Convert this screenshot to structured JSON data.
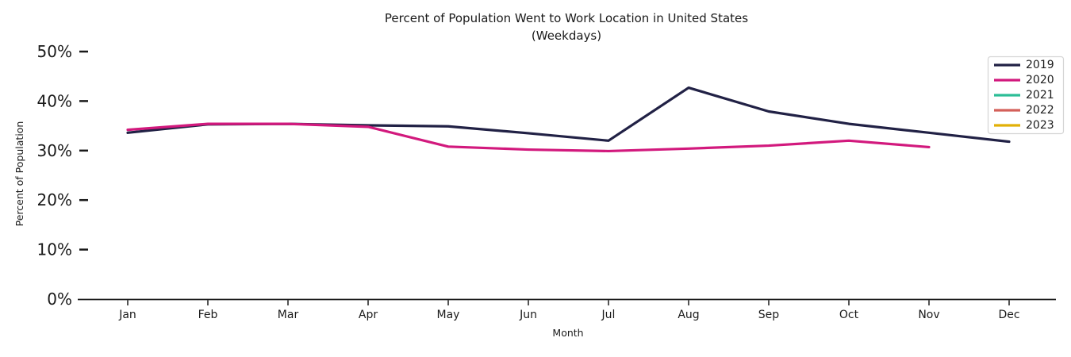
{
  "chart_data": {
    "type": "line",
    "title": "Percent of Population Went to Work Location in United States",
    "subtitle": "(Weekdays)",
    "xlabel": "Month",
    "ylabel": "Percent of Population",
    "categories": [
      "Jan",
      "Feb",
      "Mar",
      "Apr",
      "May",
      "Jun",
      "Jul",
      "Aug",
      "Sep",
      "Oct",
      "Nov",
      "Dec"
    ],
    "y_tick_labels": [
      "0%",
      "10%",
      "20%",
      "30%",
      "40%",
      "50%"
    ],
    "y_tick_values": [
      0,
      10,
      20,
      30,
      40,
      50
    ],
    "ylim": [
      0,
      50
    ],
    "grid": false,
    "legend_position": "upper right",
    "series": [
      {
        "name": "2019",
        "color": "#212145",
        "values": [
          33.6,
          35.3,
          35.4,
          35.1,
          34.9,
          33.5,
          32.0,
          42.7,
          37.9,
          35.4,
          33.6,
          31.8
        ]
      },
      {
        "name": "2020",
        "color": "#d2197d",
        "values": [
          34.2,
          35.4,
          35.4,
          34.8,
          30.8,
          30.2,
          29.9,
          30.4,
          31.0,
          32.0,
          30.7,
          null
        ]
      },
      {
        "name": "2021",
        "color": "#2cbd96",
        "values": []
      },
      {
        "name": "2022",
        "color": "#d4605a",
        "values": []
      },
      {
        "name": "2023",
        "color": "#e2b007",
        "values": []
      }
    ],
    "colors": {
      "axis": "#1a1a1a",
      "legend_border": "#d4d4d4",
      "legend_bg": "#ffffff"
    }
  }
}
